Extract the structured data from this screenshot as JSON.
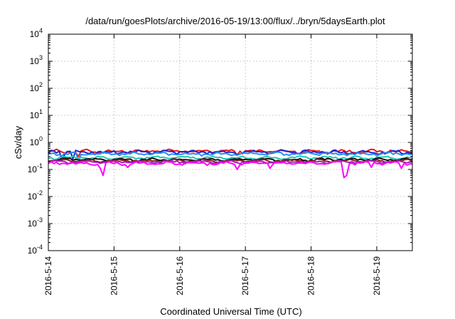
{
  "chart_data": {
    "type": "line",
    "title": "/data/run/goesPlots/archive/2016-05-19/13:00/flux/../bryn/5daysEarth.plot",
    "xlabel": "Coordinated Universal Time (UTC)",
    "ylabel": "cSv/day",
    "yscale": "log",
    "ylim": [
      0.0001,
      10000
    ],
    "xlim": [
      "2016-05-14 00:00",
      "2016-05-19 13:00"
    ],
    "grid": true,
    "x_ticks": [
      "2016-5-14",
      "2016-5-15",
      "2016-5-16",
      "2016-5-17",
      "2016-5-18",
      "2016-5-19"
    ],
    "y_ticks": [
      {
        "base": "10",
        "exp": "-4"
      },
      {
        "base": "10",
        "exp": "-3"
      },
      {
        "base": "10",
        "exp": "-2"
      },
      {
        "base": "10",
        "exp": "-1"
      },
      {
        "base": "10",
        "exp": "0"
      },
      {
        "base": "10",
        "exp": "1"
      },
      {
        "base": "10",
        "exp": "2"
      },
      {
        "base": "10",
        "exp": "3"
      },
      {
        "base": "10",
        "exp": "4"
      }
    ],
    "series": [
      {
        "color": "#e8191c",
        "level": 0.47,
        "noise": 0.12,
        "dips": [
          [
            "2016-05-14 11:00",
            0.3
          ],
          [
            "2016-05-16 21:00",
            0.33
          ]
        ]
      },
      {
        "color": "#2222cc",
        "level": 0.44,
        "noise": 0.12,
        "dips": [
          [
            "2016-05-14 05:00",
            0.22
          ],
          [
            "2016-05-14 09:00",
            0.25
          ]
        ]
      },
      {
        "color": "#2b8cf0",
        "level": 0.38,
        "noise": 0.1,
        "dips": [
          [
            "2016-05-14 11:00",
            0.22
          ]
        ]
      },
      {
        "color": "#20c8b0",
        "level": 0.27,
        "noise": 0.08,
        "dips": []
      },
      {
        "color": "#101010",
        "level": 0.23,
        "noise": 0.08,
        "dips": []
      },
      {
        "color": "#8b1a1a",
        "level": 0.21,
        "noise": 0.08,
        "dips": []
      },
      {
        "color": "#a020c0",
        "level": 0.19,
        "noise": 0.08,
        "dips": []
      },
      {
        "color": "#ff00ff",
        "level": 0.17,
        "noise": 0.1,
        "dips": [
          [
            "2016-05-14 19:00",
            0.11
          ],
          [
            "2016-05-14 20:00",
            0.06
          ],
          [
            "2016-05-15 05:00",
            0.12
          ],
          [
            "2016-05-16 21:00",
            0.1
          ],
          [
            "2016-05-17 09:00",
            0.11
          ],
          [
            "2016-05-18 12:00",
            0.05
          ],
          [
            "2016-05-18 13:00",
            0.06
          ],
          [
            "2016-05-18 22:00",
            0.12
          ],
          [
            "2016-05-19 09:00",
            0.11
          ]
        ]
      }
    ]
  }
}
